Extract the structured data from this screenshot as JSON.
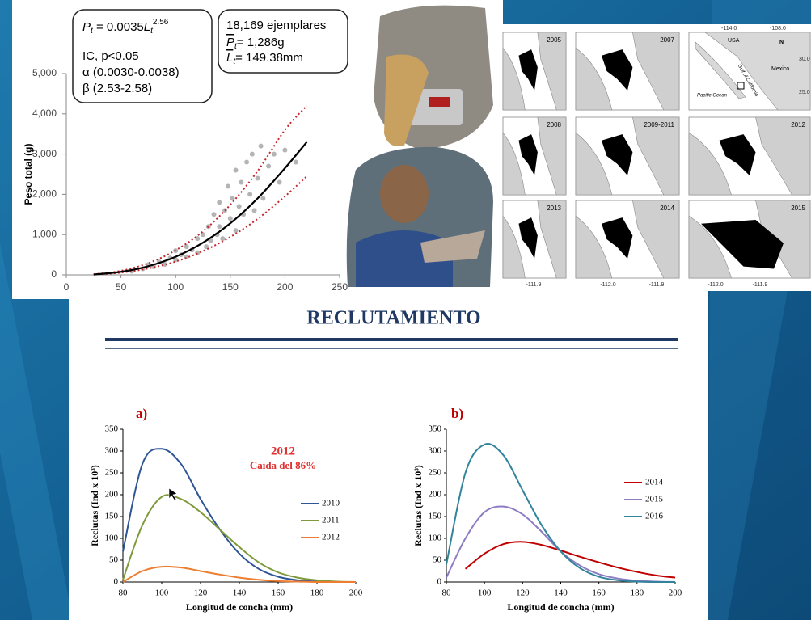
{
  "slide": {
    "title": "RECLUTAMIENTO"
  },
  "formula_box": {
    "lines": [
      [
        "P",
        "t",
        " = 0.0035",
        "L",
        "t",
        "2.56"
      ],
      "IC, p<0.05",
      "α (0.0030-0.0038)",
      "β (2.53-2.58)"
    ]
  },
  "stats_box": {
    "lines": [
      "18,169 ejemplares",
      [
        "P",
        "t",
        "= 1,286g"
      ],
      [
        "L",
        "t",
        "= 149.38mm"
      ]
    ]
  },
  "maps": {
    "panels": [
      "2005",
      "2007",
      "2008",
      "2009-2011",
      "2012",
      "2013",
      "2014",
      "2015"
    ],
    "inset": {
      "top_ticks": [
        "-114.0",
        "-108.0"
      ],
      "side_ticks": [
        "30.0",
        "25.0"
      ],
      "labels": [
        "USA",
        "Mexico",
        "Pacific Ocean",
        "Gulf of California",
        "N"
      ]
    },
    "bottom_ticks": [
      "-111.9",
      "-112.0",
      "-111.9",
      "-112.0",
      "-111.9"
    ]
  },
  "chart_data": [
    {
      "type": "scatter",
      "ylabel": "Peso total  (g)",
      "xlim": [
        0,
        250
      ],
      "xticks": [
        0,
        50,
        100,
        150,
        200,
        250
      ],
      "ylim": [
        0,
        5000
      ],
      "yticks": [
        0,
        {
          "value": 1000,
          "label": "1,000"
        },
        {
          "value": 2000,
          "label": "2,000"
        },
        {
          "value": 3000,
          "label": "3,000"
        },
        {
          "value": 4000,
          "label": "4,000"
        },
        {
          "value": 5000,
          "label": "5,000"
        }
      ],
      "points": {
        "color": "#b4b4b4",
        "x": [
          60,
          70,
          75,
          80,
          85,
          90,
          95,
          100,
          100,
          105,
          110,
          110,
          115,
          120,
          120,
          125,
          128,
          130,
          132,
          135,
          138,
          140,
          140,
          143,
          145,
          148,
          150,
          152,
          155,
          155,
          158,
          160,
          162,
          165,
          168,
          170,
          172,
          175,
          178,
          180,
          185,
          190,
          195,
          200,
          210
        ],
        "y": [
          90,
          150,
          250,
          200,
          320,
          260,
          420,
          380,
          600,
          500,
          700,
          450,
          620,
          900,
          550,
          1000,
          700,
          1200,
          850,
          1500,
          1000,
          1800,
          1200,
          900,
          1600,
          2200,
          1400,
          1900,
          2600,
          1100,
          1700,
          2300,
          1500,
          2800,
          2000,
          3000,
          1600,
          2400,
          3200,
          1900,
          2700,
          3000,
          2300,
          3100,
          2800
        ]
      },
      "fit": {
        "color": "#000000",
        "x": [
          25,
          50,
          75,
          100,
          125,
          150,
          175,
          200,
          220
        ],
        "values": [
          10,
          75,
          215,
          450,
          800,
          1280,
          1900,
          2650,
          3300
        ]
      },
      "ci_upper": {
        "color": "#c0282d",
        "x": [
          25,
          50,
          75,
          100,
          125,
          150,
          175,
          200,
          220
        ],
        "values": [
          15,
          100,
          290,
          610,
          1080,
          1740,
          2580,
          3600,
          4200
        ]
      },
      "ci_lower": {
        "color": "#c0282d",
        "x": [
          25,
          50,
          75,
          100,
          125,
          150,
          175,
          200,
          220
        ],
        "values": [
          8,
          55,
          160,
          330,
          590,
          940,
          1390,
          1950,
          2450
        ]
      }
    },
    {
      "type": "line",
      "title": "a)",
      "xlabel": "Longitud de concha (mm)",
      "ylabel": "Reclutas (Ind x 10³)",
      "annotations": [
        "2012",
        "Caída del 86%"
      ],
      "x": [
        80,
        90,
        100,
        110,
        120,
        130,
        140,
        150,
        160,
        170,
        180,
        190,
        200
      ],
      "xlim": [
        80,
        200
      ],
      "xticks": [
        80,
        100,
        120,
        140,
        160,
        180,
        200
      ],
      "ylim": [
        0,
        350
      ],
      "yticks": [
        0,
        50,
        100,
        150,
        200,
        250,
        300,
        350
      ],
      "series": [
        {
          "name": "2010",
          "color": "#2f5597",
          "values": [
            70,
            270,
            305,
            270,
            190,
            120,
            65,
            30,
            12,
            4,
            1,
            0,
            0
          ]
        },
        {
          "name": "2011",
          "color": "#7f9a3a",
          "values": [
            5,
            130,
            195,
            190,
            160,
            120,
            80,
            45,
            22,
            10,
            4,
            1,
            0
          ]
        },
        {
          "name": "2012",
          "color": "#ed7d31",
          "values": [
            0,
            25,
            35,
            33,
            25,
            17,
            10,
            5,
            2,
            1,
            0,
            0,
            0
          ]
        }
      ]
    },
    {
      "type": "line",
      "title": "b)",
      "xlabel": "Longitud de concha (mm)",
      "ylabel": "Reclutas (Ind x 10³)",
      "x": [
        80,
        90,
        100,
        110,
        120,
        130,
        140,
        150,
        160,
        170,
        180,
        190,
        200
      ],
      "xlim": [
        80,
        200
      ],
      "xticks": [
        80,
        100,
        120,
        140,
        160,
        180,
        200
      ],
      "ylim": [
        0,
        350
      ],
      "yticks": [
        0,
        50,
        100,
        150,
        200,
        250,
        300,
        350
      ],
      "series": [
        {
          "name": "2014",
          "color": "#c00000",
          "values": [
            null,
            30,
            65,
            87,
            92,
            85,
            72,
            58,
            45,
            33,
            23,
            15,
            10
          ]
        },
        {
          "name": "2015",
          "color": "#8e7cc3",
          "values": [
            10,
            100,
            160,
            173,
            155,
            115,
            70,
            38,
            18,
            8,
            3,
            1,
            0
          ]
        },
        {
          "name": "2016",
          "color": "#31849b",
          "values": [
            40,
            250,
            315,
            290,
            210,
            130,
            70,
            32,
            12,
            4,
            1,
            0,
            0
          ]
        }
      ]
    }
  ]
}
